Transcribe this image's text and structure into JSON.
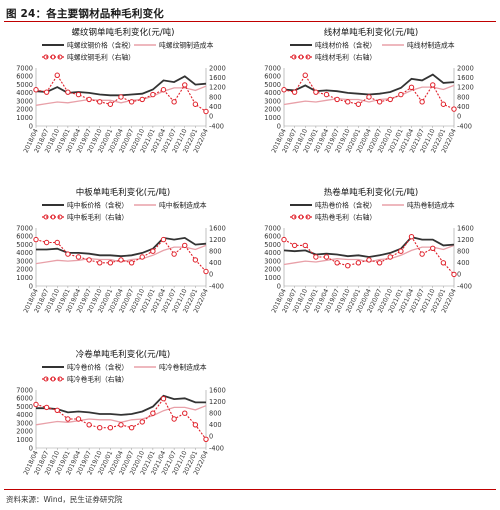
{
  "figure": {
    "title": "图 24：各主要钢材品种毛利变化",
    "source": "资料来源：Wind，民生证券研究院"
  },
  "colors": {
    "price": "#333333",
    "cost": "#e8a0a8",
    "profit": "#e0202a",
    "accent": "#c00000"
  },
  "x_categories": [
    "2018/04",
    "2018/07",
    "2018/10",
    "2019/01",
    "2019/04",
    "2019/07",
    "2019/10",
    "2020/01",
    "2020/04",
    "2020/07",
    "2020/10",
    "2021/01",
    "2021/04",
    "2021/07",
    "2021/10",
    "2022/01",
    "2022/04"
  ],
  "chart_data": [
    {
      "type": "line",
      "title": "螺纹钢单吨毛利变化(元/吨)",
      "ylim_left": [
        0,
        7000
      ],
      "yticks_left": [
        0,
        1000,
        2000,
        3000,
        4000,
        5000,
        6000,
        7000
      ],
      "ylim_right": [
        -400,
        2000
      ],
      "yticks_right": [
        -400,
        0,
        400,
        800,
        1200,
        1600,
        2000
      ],
      "series": [
        {
          "name": "吨螺纹钢价格（含税）",
          "axis": "left",
          "style": "price",
          "values": [
            4200,
            4100,
            4700,
            4000,
            4100,
            4000,
            3800,
            3700,
            3700,
            3800,
            3900,
            4400,
            5500,
            5300,
            6000,
            5000,
            5100
          ]
        },
        {
          "name": "吨螺纹钢制造成本",
          "axis": "left",
          "style": "cost",
          "values": [
            2500,
            2700,
            2900,
            2800,
            3000,
            3200,
            3100,
            3100,
            2800,
            3100,
            3200,
            3600,
            4200,
            4600,
            4600,
            4300,
            4800
          ]
        },
        {
          "name": "吨螺纹钢毛利（右轴）",
          "axis": "right",
          "style": "profit",
          "values": [
            1100,
            1000,
            1700,
            1000,
            900,
            700,
            600,
            500,
            800,
            600,
            700,
            900,
            1100,
            600,
            1300,
            500,
            200
          ]
        }
      ]
    },
    {
      "type": "line",
      "title": "线材单吨毛利变化(元/吨)",
      "ylim_left": [
        0,
        7000
      ],
      "yticks_left": [
        0,
        1000,
        2000,
        3000,
        4000,
        5000,
        6000,
        7000
      ],
      "ylim_right": [
        -400,
        2000
      ],
      "yticks_right": [
        -400,
        0,
        400,
        800,
        1200,
        1600,
        2000
      ],
      "series": [
        {
          "name": "吨线材价格（含税）",
          "axis": "left",
          "style": "price",
          "values": [
            4400,
            4300,
            4900,
            4200,
            4300,
            4200,
            4000,
            3900,
            3800,
            3900,
            4100,
            4600,
            5700,
            5500,
            6200,
            5200,
            5300
          ]
        },
        {
          "name": "吨线材制造成本",
          "axis": "left",
          "style": "cost",
          "values": [
            2600,
            2800,
            3000,
            2900,
            3100,
            3300,
            3200,
            3200,
            2900,
            3200,
            3300,
            3700,
            4300,
            4700,
            4700,
            4400,
            4900
          ]
        },
        {
          "name": "吨线材毛利（右轴）",
          "axis": "right",
          "style": "profit",
          "values": [
            1100,
            1000,
            1700,
            1000,
            900,
            700,
            600,
            500,
            800,
            600,
            700,
            900,
            1200,
            600,
            1300,
            500,
            300
          ]
        }
      ]
    },
    {
      "type": "line",
      "title": "中板单吨毛利变化(元/吨)",
      "ylim_left": [
        0,
        7000
      ],
      "yticks_left": [
        0,
        1000,
        2000,
        3000,
        4000,
        5000,
        6000,
        7000
      ],
      "ylim_right": [
        -400,
        1600
      ],
      "yticks_right": [
        -400,
        0,
        400,
        800,
        1200,
        1600
      ],
      "series": [
        {
          "name": "吨中板价格（含税）",
          "axis": "left",
          "style": "price",
          "values": [
            4400,
            4400,
            4500,
            4000,
            4000,
            3900,
            3700,
            3700,
            3600,
            3700,
            4000,
            4500,
            5800,
            5600,
            5800,
            5000,
            5100
          ]
        },
        {
          "name": "吨中板制造成本",
          "axis": "left",
          "style": "cost",
          "values": [
            2700,
            2900,
            3100,
            3000,
            3100,
            3300,
            3200,
            3200,
            2900,
            3200,
            3300,
            3700,
            4300,
            4700,
            4700,
            4400,
            4900
          ]
        },
        {
          "name": "吨中板毛利（右轴）",
          "axis": "right",
          "style": "profit",
          "values": [
            1200,
            1100,
            1100,
            700,
            600,
            500,
            400,
            400,
            500,
            400,
            600,
            800,
            1200,
            700,
            1000,
            500,
            100
          ]
        }
      ]
    },
    {
      "type": "line",
      "title": "热卷单吨毛利变化(元/吨)",
      "ylim_left": [
        0,
        7000
      ],
      "yticks_left": [
        0,
        1000,
        2000,
        3000,
        4000,
        5000,
        6000,
        7000
      ],
      "ylim_right": [
        -400,
        1600
      ],
      "yticks_right": [
        -400,
        0,
        400,
        800,
        1200,
        1600
      ],
      "series": [
        {
          "name": "吨热卷价格（含税）",
          "axis": "left",
          "style": "price",
          "values": [
            4300,
            4200,
            4300,
            3800,
            3900,
            3800,
            3600,
            3700,
            3500,
            3700,
            4000,
            4500,
            5900,
            5600,
            5600,
            4900,
            5000
          ]
        },
        {
          "name": "吨热卷制造成本",
          "axis": "left",
          "style": "cost",
          "values": [
            2600,
            2800,
            3000,
            2900,
            3100,
            3300,
            3200,
            3200,
            2900,
            3200,
            3300,
            3700,
            4300,
            4700,
            4700,
            4400,
            4900
          ]
        },
        {
          "name": "吨热卷毛利（右轴）",
          "axis": "right",
          "style": "profit",
          "values": [
            1200,
            1000,
            1000,
            600,
            600,
            400,
            300,
            400,
            500,
            400,
            600,
            800,
            1300,
            700,
            900,
            400,
            0
          ]
        }
      ]
    },
    {
      "type": "line",
      "title": "冷卷单吨毛利变化(元/吨)",
      "ylim_left": [
        0,
        7000
      ],
      "yticks_left": [
        0,
        1000,
        2000,
        3000,
        4000,
        5000,
        6000,
        7000
      ],
      "ylim_right": [
        -400,
        1600
      ],
      "yticks_right": [
        -400,
        0,
        400,
        800,
        1200,
        1600
      ],
      "series": [
        {
          "name": "吨冷卷价格（含税）",
          "axis": "left",
          "style": "price",
          "values": [
            4800,
            4800,
            4700,
            4300,
            4400,
            4300,
            4100,
            4100,
            4000,
            4100,
            4400,
            5000,
            6300,
            5900,
            6000,
            5500,
            5500
          ]
        },
        {
          "name": "吨冷卷制造成本",
          "axis": "left",
          "style": "cost",
          "values": [
            2800,
            3000,
            3200,
            3100,
            3300,
            3500,
            3400,
            3400,
            3100,
            3400,
            3500,
            3900,
            4500,
            4900,
            4900,
            4600,
            5100
          ]
        },
        {
          "name": "吨冷卷毛利（右轴）",
          "axis": "right",
          "style": "profit",
          "values": [
            1100,
            1000,
            900,
            600,
            600,
            400,
            300,
            300,
            400,
            300,
            500,
            800,
            1300,
            600,
            800,
            400,
            -100
          ]
        }
      ]
    }
  ]
}
